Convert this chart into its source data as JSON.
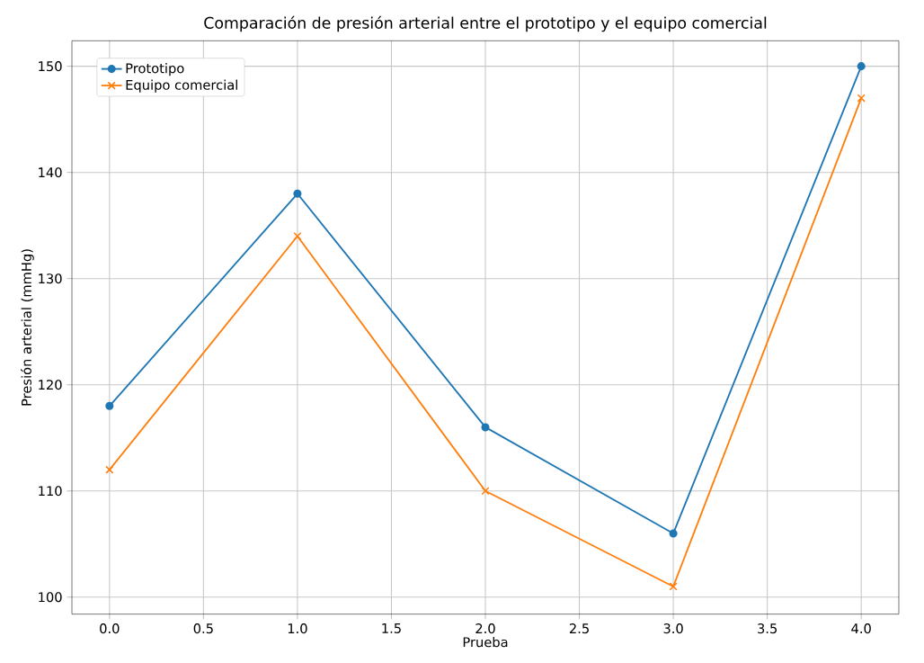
{
  "chart_data": {
    "type": "line",
    "title": "Comparación de presión arterial entre el prototipo y el equipo comercial",
    "xlabel": "Prueba",
    "ylabel": "Presión arterial (mmHg)",
    "x": [
      0,
      1,
      2,
      3,
      4
    ],
    "series": [
      {
        "name": "Prototipo",
        "color": "#1f77b4",
        "marker": "circle",
        "values": [
          118,
          138,
          116,
          106,
          150
        ]
      },
      {
        "name": "Equipo comercial",
        "color": "#ff7f0e",
        "marker": "cross",
        "values": [
          112,
          134,
          110,
          101,
          147
        ]
      }
    ],
    "xlim": [
      -0.2,
      4.2
    ],
    "ylim": [
      98.4,
      152.4
    ],
    "xticks": [
      {
        "value": 0,
        "label": "0.0"
      },
      {
        "value": 0.5,
        "label": "0.5"
      },
      {
        "value": 1,
        "label": "1.0"
      },
      {
        "value": 1.5,
        "label": "1.5"
      },
      {
        "value": 2,
        "label": "2.0"
      },
      {
        "value": 2.5,
        "label": "2.5"
      },
      {
        "value": 3,
        "label": "3.0"
      },
      {
        "value": 3.5,
        "label": "3.5"
      },
      {
        "value": 4,
        "label": "4.0"
      }
    ],
    "yticks": [
      100,
      110,
      120,
      130,
      140,
      150
    ],
    "grid": true,
    "legend": "top left",
    "line_style": "solid"
  }
}
